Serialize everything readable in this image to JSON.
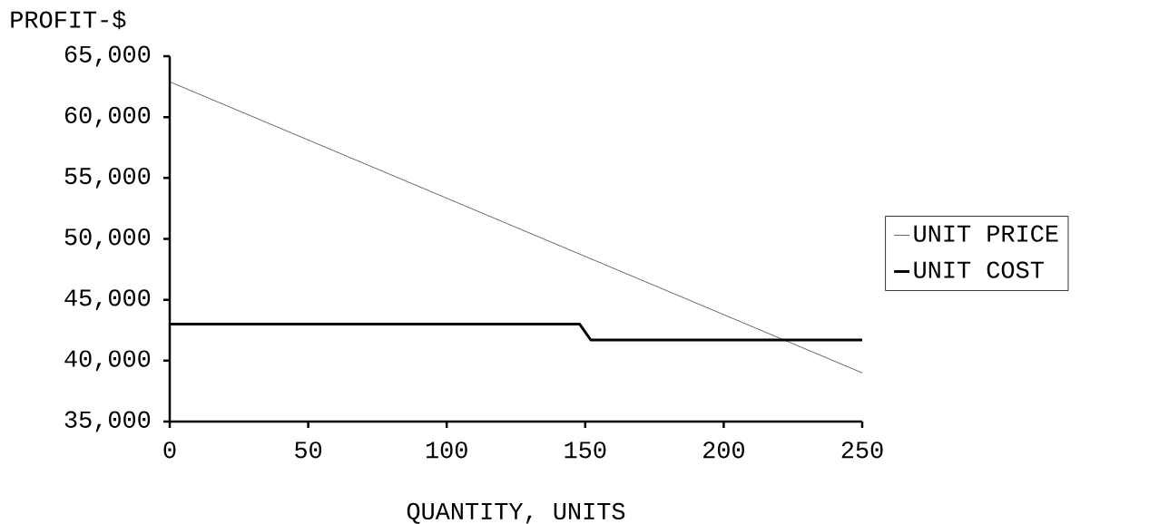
{
  "chart_data": {
    "type": "line",
    "xlabel": "QUANTITY, UNITS",
    "ylabel": "PROFIT-$",
    "xlim": [
      0,
      250
    ],
    "ylim": [
      35000,
      65000
    ],
    "xticks": [
      0,
      50,
      100,
      150,
      200,
      250
    ],
    "yticks": [
      {
        "value": 35000,
        "label": "35,000"
      },
      {
        "value": 40000,
        "label": "40,000"
      },
      {
        "value": 45000,
        "label": "45,000"
      },
      {
        "value": 50000,
        "label": "50,000"
      },
      {
        "value": 55000,
        "label": "55,000"
      },
      {
        "value": 60000,
        "label": "60,000"
      },
      {
        "value": 65000,
        "label": "65,000"
      }
    ],
    "legend": "right",
    "series": [
      {
        "name": "UNIT PRICE",
        "color": "#000000",
        "x": [
          0,
          250
        ],
        "values": [
          62900,
          39000
        ]
      },
      {
        "name": "UNIT COST",
        "color": "#000000",
        "x": [
          0,
          148,
          152,
          250
        ],
        "values": [
          43000,
          43000,
          41700,
          41700
        ]
      }
    ]
  }
}
